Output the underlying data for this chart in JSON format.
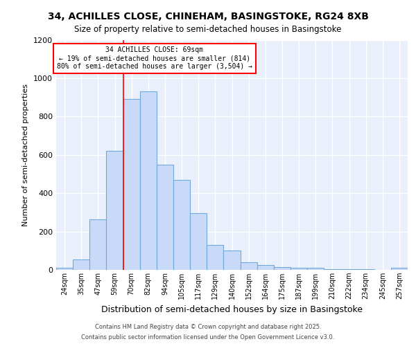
{
  "title_line1": "34, ACHILLES CLOSE, CHINEHAM, BASINGSTOKE, RG24 8XB",
  "title_line2": "Size of property relative to semi-detached houses in Basingstoke",
  "xlabel": "Distribution of semi-detached houses by size in Basingstoke",
  "ylabel": "Number of semi-detached properties",
  "bar_labels": [
    "24sqm",
    "35sqm",
    "47sqm",
    "59sqm",
    "70sqm",
    "82sqm",
    "94sqm",
    "105sqm",
    "117sqm",
    "129sqm",
    "140sqm",
    "152sqm",
    "164sqm",
    "175sqm",
    "187sqm",
    "199sqm",
    "210sqm",
    "222sqm",
    "234sqm",
    "245sqm",
    "257sqm"
  ],
  "bar_values": [
    10,
    55,
    265,
    620,
    890,
    930,
    550,
    470,
    295,
    130,
    100,
    40,
    25,
    15,
    10,
    10,
    5,
    3,
    2,
    1,
    10
  ],
  "bar_color": "#c9daf8",
  "bar_edge_color": "#6fa8dc",
  "red_line_x": 3.5,
  "property_label": "34 ACHILLES CLOSE: 69sqm",
  "smaller_text": "← 19% of semi-detached houses are smaller (814)",
  "larger_text": "80% of semi-detached houses are larger (3,504) →",
  "ylim": [
    0,
    1200
  ],
  "yticks": [
    0,
    200,
    400,
    600,
    800,
    1000,
    1200
  ],
  "footer_line1": "Contains HM Land Registry data © Crown copyright and database right 2025.",
  "footer_line2": "Contains public sector information licensed under the Open Government Licence v3.0.",
  "plot_bg_color": "#eaf0fb",
  "fig_bg_color": "#ffffff"
}
